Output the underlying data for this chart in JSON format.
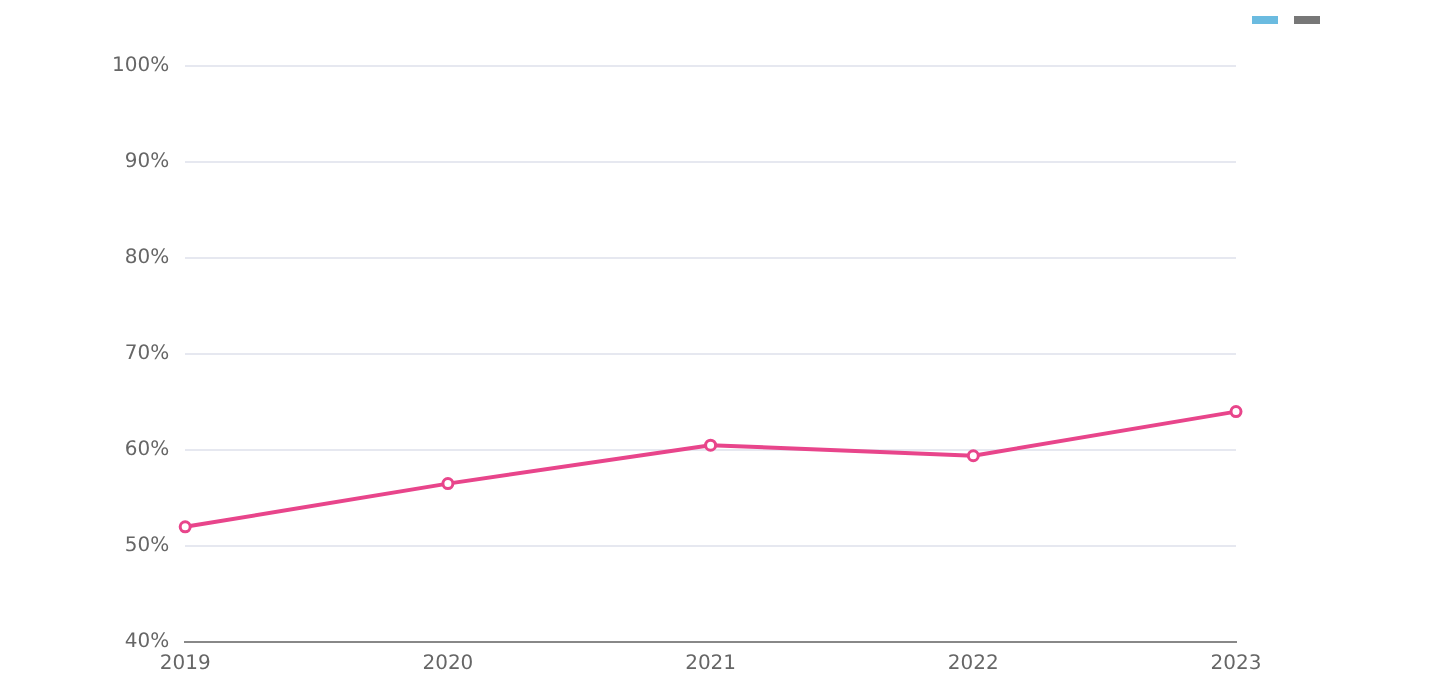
{
  "chart_data": {
    "type": "line",
    "categories": [
      "2019",
      "2020",
      "2021",
      "2022",
      "2023"
    ],
    "series": [
      {
        "color": "#e8458b",
        "values": [
          52,
          56.5,
          60.5,
          59.4,
          64
        ]
      }
    ],
    "ylim": [
      40,
      100
    ],
    "yticks": [
      {
        "value": 40,
        "label": "40%"
      },
      {
        "value": 50,
        "label": "50%"
      },
      {
        "value": 60,
        "label": "60%"
      },
      {
        "value": 70,
        "label": "70%"
      },
      {
        "value": 80,
        "label": "80%"
      },
      {
        "value": 90,
        "label": "90%"
      },
      {
        "value": 100,
        "label": "100%"
      }
    ],
    "grid": "y",
    "marker": "circle",
    "line_style": "solid"
  }
}
